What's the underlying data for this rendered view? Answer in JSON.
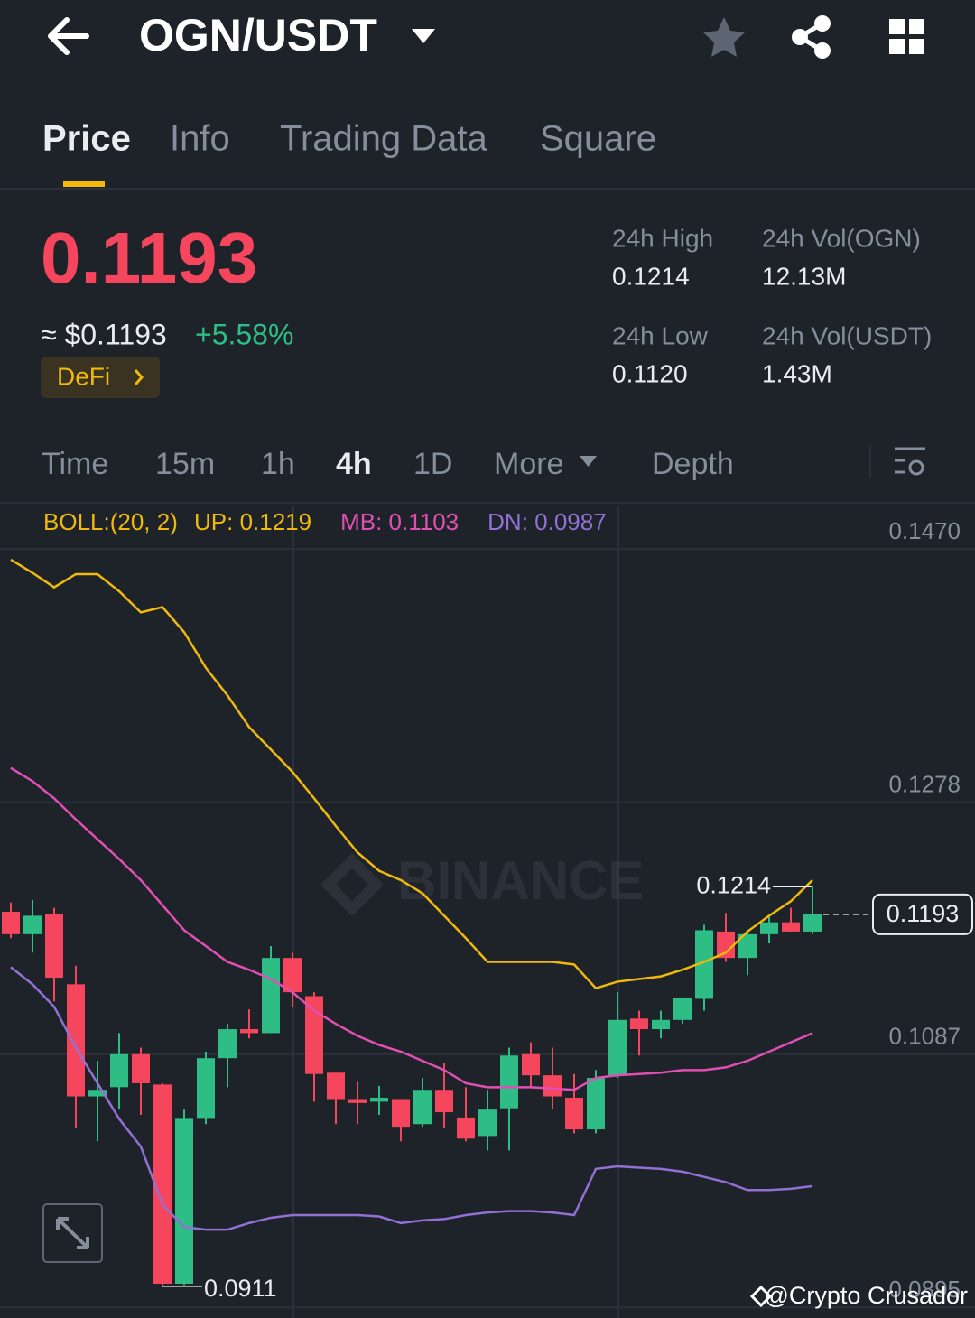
{
  "header": {
    "title": "OGN/USDT"
  },
  "tabs": [
    "Price",
    "Info",
    "Trading Data",
    "Square"
  ],
  "ticker": {
    "price": "0.1193",
    "usd": "≈ $0.1193",
    "change": "+5.58%",
    "tag": "DeFi",
    "stats": [
      {
        "label": "24h High",
        "value": "0.1214"
      },
      {
        "label": "24h Vol(OGN)",
        "value": "12.13M"
      },
      {
        "label": "24h Low",
        "value": "0.1120"
      },
      {
        "label": "24h Vol(USDT)",
        "value": "1.43M"
      }
    ]
  },
  "intervals": [
    "Time",
    "15m",
    "1h",
    "4h",
    "1D",
    "More",
    "Depth"
  ],
  "chart_data": {
    "type": "candlestick",
    "indicator": "BOLL:(20, 2)",
    "up_color": "#2ebd85",
    "down_color": "#f6465d",
    "open": [
      0.1195,
      0.1178,
      0.1193,
      0.114,
      0.1055,
      0.1062,
      0.1087,
      0.1064,
      0.0913,
      0.1038,
      0.1084,
      0.1106,
      0.1103,
      0.116,
      0.1131,
      0.1073,
      0.1053,
      0.1051,
      0.1053,
      0.1034,
      0.106,
      0.1039,
      0.1025,
      0.1046,
      0.1087,
      0.1071,
      0.1054,
      0.103,
      0.1071,
      0.1114,
      0.1106,
      0.1113,
      0.1129,
      0.118,
      0.116,
      0.1178,
      0.1187,
      0.118
    ],
    "high": [
      0.1202,
      0.1204,
      0.1198,
      0.1154,
      0.1082,
      0.1103,
      0.1092,
      0.1065,
      0.1045,
      0.1089,
      0.111,
      0.1121,
      0.1169,
      0.1164,
      0.1134,
      0.1073,
      0.1066,
      0.1063,
      0.1053,
      0.1069,
      0.108,
      0.1062,
      0.106,
      0.1092,
      0.1096,
      0.1092,
      0.1072,
      0.1075,
      0.1134,
      0.112,
      0.112,
      0.113,
      0.1185,
      0.1194,
      0.1181,
      0.1192,
      0.1198,
      0.1214
    ],
    "low": [
      0.1175,
      0.1164,
      0.1127,
      0.1031,
      0.1021,
      0.1045,
      0.1041,
      0.0911,
      0.0912,
      0.1034,
      0.1062,
      0.1099,
      0.1103,
      0.1123,
      0.1051,
      0.1034,
      0.1034,
      0.1041,
      0.1021,
      0.1032,
      0.1031,
      0.1021,
      0.1014,
      0.1014,
      0.1062,
      0.1045,
      0.1027,
      0.1027,
      0.1069,
      0.1086,
      0.1099,
      0.111,
      0.112,
      0.1157,
      0.1147,
      0.1171,
      0.118,
      0.1178
    ],
    "close": [
      0.1178,
      0.1192,
      0.1145,
      0.1055,
      0.106,
      0.1087,
      0.1065,
      0.0913,
      0.1038,
      0.1084,
      0.1106,
      0.1103,
      0.116,
      0.1134,
      0.1072,
      0.1053,
      0.105,
      0.1054,
      0.1032,
      0.106,
      0.1043,
      0.1023,
      0.1045,
      0.1086,
      0.1071,
      0.1055,
      0.103,
      0.1069,
      0.1113,
      0.1106,
      0.1113,
      0.113,
      0.1181,
      0.116,
      0.1178,
      0.1187,
      0.118,
      0.1193
    ],
    "series": [
      {
        "name": "UP: 0.1219",
        "color": "#f0b90b",
        "values": [
          0.1462,
          0.1452,
          0.1441,
          0.1451,
          0.1451,
          0.1438,
          0.1422,
          0.1426,
          0.1407,
          0.138,
          0.1359,
          0.1335,
          0.1318,
          0.1301,
          0.1281,
          0.126,
          0.124,
          0.1226,
          0.1219,
          0.1209,
          0.1192,
          0.1175,
          0.1157,
          0.1157,
          0.1157,
          0.1157,
          0.1155,
          0.1137,
          0.1142,
          0.1144,
          0.1146,
          0.1151,
          0.1157,
          0.1164,
          0.118,
          0.1192,
          0.1203,
          0.1219
        ]
      },
      {
        "name": "MB: 0.1103",
        "color": "#e24fb4",
        "values": [
          0.1304,
          0.1294,
          0.1281,
          0.1265,
          0.125,
          0.1235,
          0.1219,
          0.12,
          0.1181,
          0.1169,
          0.1157,
          0.1151,
          0.1144,
          0.1134,
          0.112,
          0.111,
          0.1101,
          0.1094,
          0.1089,
          0.1082,
          0.1075,
          0.1065,
          0.1062,
          0.1062,
          0.1062,
          0.1061,
          0.106,
          0.1069,
          0.1071,
          0.1072,
          0.1073,
          0.1075,
          0.1075,
          0.1077,
          0.1082,
          0.1089,
          0.1096,
          0.1103
        ]
      },
      {
        "name": "DN: 0.0987",
        "color": "#9270d6",
        "values": [
          0.1153,
          0.114,
          0.1123,
          0.1092,
          0.1065,
          0.1038,
          0.1017,
          0.0973,
          0.0956,
          0.0954,
          0.0954,
          0.0959,
          0.0963,
          0.0965,
          0.0965,
          0.0965,
          0.0965,
          0.0964,
          0.0959,
          0.0961,
          0.0962,
          0.0965,
          0.0967,
          0.0968,
          0.0968,
          0.0967,
          0.0965,
          0.1,
          0.1002,
          0.1001,
          0.1,
          0.0998,
          0.0994,
          0.099,
          0.0984,
          0.0984,
          0.0985,
          0.0987
        ]
      }
    ],
    "ylim": [
      0.0887,
      0.1503
    ],
    "yticks": [
      {
        "value": 0.147,
        "label": "0.1470"
      },
      0.1278,
      0.1087,
      0.0895
    ],
    "high_label": 0.1214,
    "low_label": 0.0911,
    "last_price": 0.1193,
    "watermark": "BINANCE"
  },
  "credit": "@Crypto Crusador"
}
